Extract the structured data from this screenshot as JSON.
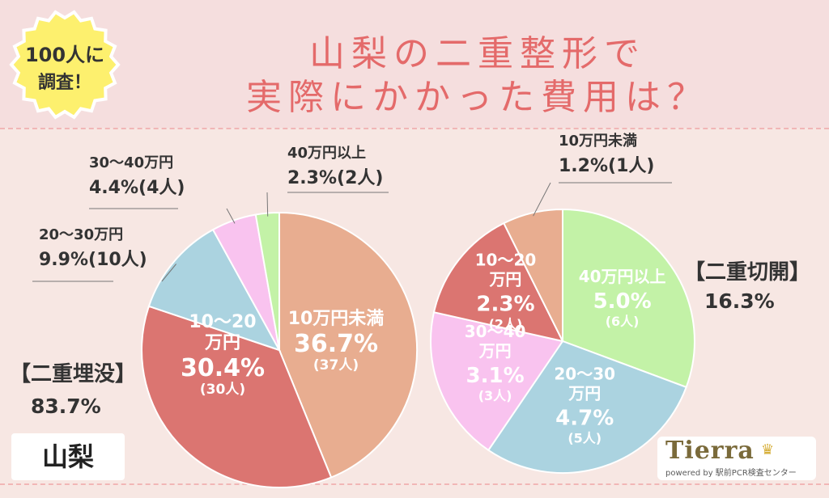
{
  "header": {
    "title_line1": "山梨の二重整形で",
    "title_line2": "実際にかかった費用は？",
    "badge_line1": "100人に",
    "badge_line2": "調査！"
  },
  "region": "山梨",
  "logo": {
    "name": "Tierra",
    "tagline": "powered by 駅前PCR検査センター",
    "crown_icon": "crown-icon"
  },
  "colors": {
    "title": "#e46a6a",
    "badge": "#fdf06e",
    "under10": "#e8ad90",
    "r10_20": "#db7571",
    "r20_30": "#abd3e0",
    "r30_40": "#f9c3ef",
    "over40": "#c3f2a7"
  },
  "chart_data": [
    {
      "type": "pie",
      "title": "【二重埋没】",
      "share": "83.7%",
      "slices": [
        {
          "label": "10万円未満",
          "value": 36.7,
          "count": "(37人)",
          "value_text": "36.7%",
          "color": "#e8ad90"
        },
        {
          "label": "10〜20万円",
          "value": 30.4,
          "count": "(30人)",
          "value_text": "30.4%",
          "color": "#db7571"
        },
        {
          "label": "20〜30万円",
          "value": 9.9,
          "count": "(10人)",
          "value_text": "9.9%",
          "color": "#abd3e0"
        },
        {
          "label": "30〜40万円",
          "value": 4.4,
          "count": "(4人)",
          "value_text": "4.4%",
          "color": "#f9c3ef"
        },
        {
          "label": "40万円以上",
          "value": 2.3,
          "count": "(2人)",
          "value_text": "2.3%",
          "color": "#c3f2a7"
        }
      ]
    },
    {
      "type": "pie",
      "title": "【二重切開】",
      "share": "16.3%",
      "slices": [
        {
          "label": "40万円以上",
          "value": 5.0,
          "count": "(6人)",
          "value_text": "5.0%",
          "color": "#c3f2a7"
        },
        {
          "label": "20〜30万円",
          "value": 4.7,
          "count": "(5人)",
          "value_text": "4.7%",
          "color": "#abd3e0"
        },
        {
          "label": "30〜40万円",
          "value": 3.1,
          "count": "(3人)",
          "value_text": "3.1%",
          "color": "#f9c3ef"
        },
        {
          "label": "10〜20万円",
          "value": 2.3,
          "count": "(2人)",
          "value_text": "2.3%",
          "color": "#db7571"
        },
        {
          "label": "10万円未満",
          "value": 1.2,
          "count": "(1人)",
          "value_text": "1.2%",
          "color": "#e8ad90"
        }
      ]
    }
  ]
}
